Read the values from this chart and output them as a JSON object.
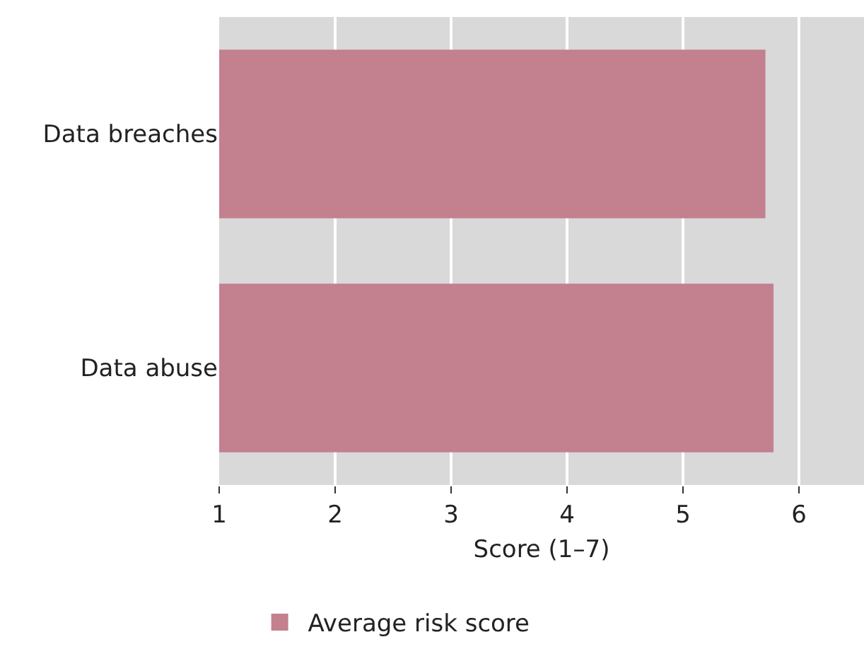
{
  "chart_data": {
    "type": "bar",
    "orientation": "horizontal",
    "categories": [
      "Data breaches",
      "Data abuse"
    ],
    "series": [
      {
        "name": "Average risk score",
        "color": "#c3808f",
        "values": [
          5.71,
          5.78
        ]
      }
    ],
    "xlabel": "Score (1–7)",
    "xlim": [
      1,
      6.56
    ],
    "xticks": [
      1,
      2,
      3,
      4,
      5,
      6
    ],
    "grid": "x",
    "legend": "bottom"
  }
}
